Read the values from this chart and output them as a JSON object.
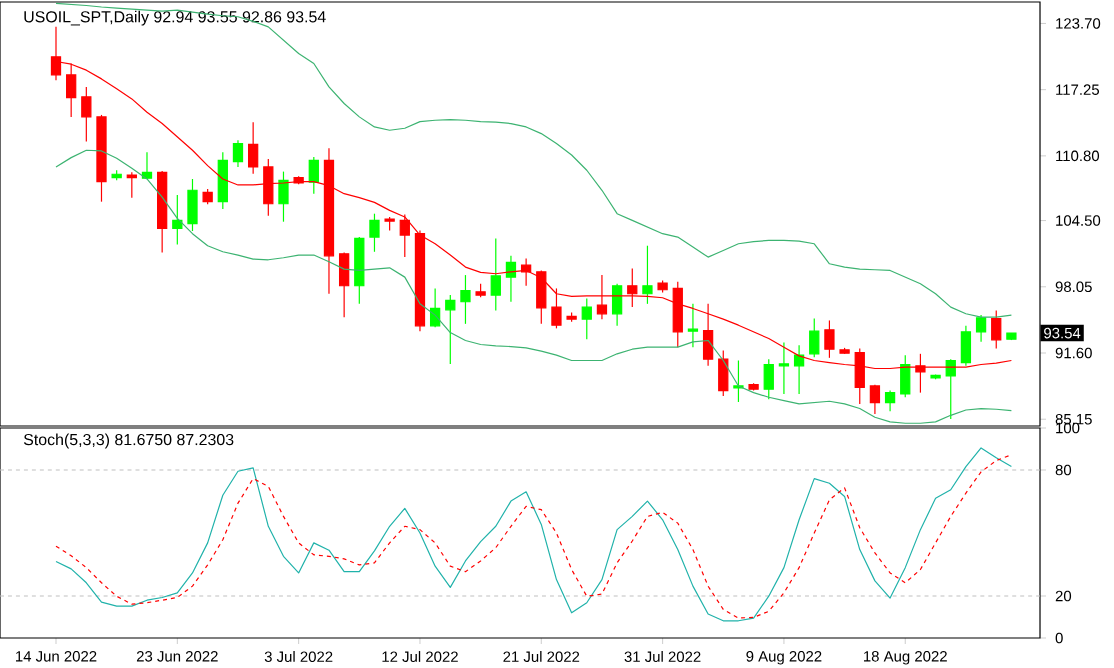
{
  "chart_data": [
    {
      "type": "candlestick",
      "title": "USOIL_SPT,Daily 92.94 93.55 92.86 93.54",
      "categories": [
        null,
        null,
        null,
        null,
        null,
        null,
        null,
        null,
        null,
        null,
        null,
        null,
        null,
        null,
        null,
        null,
        null,
        null,
        null,
        null,
        null,
        null,
        null,
        null,
        null,
        null,
        null,
        null,
        null,
        null,
        null,
        null,
        null,
        null,
        null,
        null,
        null,
        null,
        null,
        null,
        null,
        null,
        null,
        null,
        null,
        null,
        null,
        null,
        null,
        null,
        null,
        null,
        null,
        null,
        null,
        null,
        null,
        null,
        null,
        null,
        null,
        null,
        null,
        null
      ],
      "ohlc": [
        [
          120.45,
          123.37,
          118.17,
          118.69
        ],
        [
          118.69,
          119.8,
          114.6,
          116.48
        ],
        [
          116.55,
          117.52,
          112.19,
          114.6
        ],
        [
          114.6,
          114.79,
          106.34,
          108.29
        ],
        [
          108.68,
          109.4,
          108.42,
          109.01
        ],
        [
          108.94,
          109.2,
          106.73,
          108.68
        ],
        [
          108.62,
          111.15,
          108.55,
          109.2
        ],
        [
          109.2,
          109.33,
          101.4,
          103.74
        ],
        [
          103.74,
          107.0,
          102.18,
          104.52
        ],
        [
          104.2,
          108.55,
          103.48,
          107.45
        ],
        [
          107.25,
          107.58,
          106.08,
          106.34
        ],
        [
          106.34,
          111.15,
          105.62,
          110.37
        ],
        [
          110.24,
          112.32,
          109.72,
          112.0
        ],
        [
          111.93,
          114.08,
          109.07,
          109.72
        ],
        [
          109.72,
          110.5,
          104.97,
          106.14
        ],
        [
          106.14,
          109.27,
          104.39,
          108.42
        ],
        [
          108.68,
          108.81,
          108.03,
          108.16
        ],
        [
          108.23,
          110.7,
          107.12,
          110.37
        ],
        [
          110.37,
          111.54,
          97.37,
          101.07
        ],
        [
          101.27,
          101.4,
          95.09,
          98.15
        ],
        [
          98.15,
          102.89,
          96.39,
          102.76
        ],
        [
          102.89,
          105.17,
          101.46,
          104.52
        ],
        [
          104.65,
          104.85,
          103.54,
          104.45
        ],
        [
          104.52,
          105.1,
          100.94,
          103.09
        ],
        [
          103.22,
          103.54,
          93.73,
          94.25
        ],
        [
          94.25,
          97.89,
          94.12,
          95.94
        ],
        [
          95.81,
          97.24,
          90.54,
          96.72
        ],
        [
          96.59,
          99.19,
          94.44,
          97.69
        ],
        [
          97.56,
          98.34,
          97.04,
          97.24
        ],
        [
          97.24,
          102.76,
          95.74,
          99.12
        ],
        [
          98.99,
          101.07,
          96.59,
          100.42
        ],
        [
          100.16,
          100.81,
          98.15,
          99.51
        ],
        [
          99.51,
          99.64,
          94.44,
          96.0
        ],
        [
          96.07,
          97.89,
          94.0,
          94.31
        ],
        [
          95.16,
          95.55,
          94.64,
          94.9
        ],
        [
          94.9,
          96.91,
          92.95,
          96.07
        ],
        [
          96.26,
          99.19,
          94.9,
          95.42
        ],
        [
          95.42,
          98.34,
          94.25,
          98.15
        ],
        [
          98.15,
          99.84,
          96.07,
          97.37
        ],
        [
          97.37,
          102.05,
          96.39,
          98.15
        ],
        [
          98.41,
          98.67,
          97.5,
          97.76
        ],
        [
          97.89,
          98.54,
          92.17,
          93.66
        ],
        [
          93.73,
          96.39,
          92.17,
          93.92
        ],
        [
          93.79,
          96.39,
          90.35,
          91.0
        ],
        [
          91.0,
          91.84,
          87.42,
          87.94
        ],
        [
          88.2,
          90.87,
          86.83,
          88.39
        ],
        [
          88.52,
          88.65,
          87.94,
          88.07
        ],
        [
          88.07,
          91.0,
          87.09,
          90.48
        ],
        [
          90.35,
          92.62,
          87.61,
          90.54
        ],
        [
          90.35,
          92.36,
          87.61,
          91.39
        ],
        [
          91.52,
          94.96,
          91.19,
          93.73
        ],
        [
          93.86,
          94.77,
          91.13,
          91.97
        ],
        [
          91.91,
          92.1,
          91.52,
          91.58
        ],
        [
          91.65,
          92.04,
          86.64,
          88.26
        ],
        [
          88.39,
          88.52,
          85.66,
          86.77
        ],
        [
          86.77,
          87.94,
          85.92,
          87.74
        ],
        [
          87.61,
          91.39,
          87.29,
          90.48
        ],
        [
          90.35,
          91.52,
          87.74,
          89.76
        ],
        [
          89.17,
          89.5,
          89.04,
          89.43
        ],
        [
          89.37,
          91.0,
          85.18,
          90.87
        ],
        [
          90.67,
          94.25,
          90.35,
          93.66
        ],
        [
          93.66,
          95.29,
          92.69,
          95.03
        ],
        [
          94.96,
          95.74,
          92.04,
          92.88
        ],
        [
          92.94,
          93.55,
          92.86,
          93.54
        ]
      ],
      "colors": [
        "#ff0000",
        "#ff0000",
        "#ff0000",
        "#ff0000",
        "#00ff00",
        "#ff0000",
        "#00ff00",
        "#ff0000",
        "#00ff00",
        "#00ff00",
        "#ff0000",
        "#00ff00",
        "#00ff00",
        "#ff0000",
        "#ff0000",
        "#00ff00",
        "#ff0000",
        "#00ff00",
        "#ff0000",
        "#ff0000",
        "#00ff00",
        "#00ff00",
        "#ff0000",
        "#ff0000",
        "#ff0000",
        "#00ff00",
        "#00ff00",
        "#00ff00",
        "#ff0000",
        "#00ff00",
        "#00ff00",
        "#ff0000",
        "#ff0000",
        "#ff0000",
        "#ff0000",
        "#00ff00",
        "#ff0000",
        "#00ff00",
        "#ff0000",
        "#00ff00",
        "#ff0000",
        "#ff0000",
        "#00ff00",
        "#ff0000",
        "#ff0000",
        "#00ff00",
        "#ff0000",
        "#00ff00",
        "#00ff00",
        "#00ff00",
        "#00ff00",
        "#ff0000",
        "#ff0000",
        "#ff0000",
        "#ff0000",
        "#00ff00",
        "#00ff00",
        "#ff0000",
        "#00ff00",
        "#00ff00",
        "#00ff00",
        "#00ff00",
        "#ff0000",
        "#00ff00"
      ],
      "series": [
        {
          "type": "line",
          "color": "#3cb371",
          "values": [
            125.65,
            125.55,
            125.45,
            125.3,
            125.2,
            125.1,
            125.0,
            124.9,
            125.0,
            124.8,
            124.6,
            124.45,
            124.35,
            123.9,
            123.37,
            122.07,
            120.77,
            119.8,
            117.52,
            115.9,
            114.6,
            113.62,
            113.3,
            113.49,
            114.14,
            114.27,
            114.34,
            114.27,
            114.14,
            114.08,
            113.95,
            113.62,
            112.97,
            112.0,
            110.89,
            109.4,
            107.45,
            105.17,
            104.52,
            103.87,
            103.22,
            102.89,
            101.92,
            100.94,
            101.59,
            102.24,
            102.44,
            102.57,
            102.57,
            102.5,
            102.24,
            100.29,
            99.97,
            99.77,
            99.71,
            99.64,
            98.99,
            98.34,
            97.37,
            96.07,
            95.42,
            95.09,
            95.09,
            95.29
          ]
        },
        {
          "type": "line",
          "color": "#ff0000",
          "values": [
            119.99,
            119.73,
            119.15,
            118.3,
            117.33,
            116.35,
            115.05,
            113.95,
            112.65,
            111.35,
            109.85,
            108.55,
            107.97,
            107.97,
            108.1,
            108.16,
            108.29,
            108.29,
            107.9,
            107.12,
            106.73,
            106.27,
            105.49,
            104.85,
            103.09,
            102.24,
            101.14,
            99.97,
            99.45,
            99.32,
            99.51,
            99.64,
            98.93,
            97.37,
            97.11,
            97.17,
            97.17,
            97.17,
            97.17,
            97.11,
            96.98,
            96.39,
            95.94,
            95.42,
            94.9,
            94.31,
            93.66,
            93.01,
            92.17,
            91.32,
            90.87,
            90.67,
            90.48,
            90.35,
            90.09,
            90.09,
            90.22,
            90.22,
            90.22,
            90.22,
            90.22,
            90.48,
            90.61,
            90.87
          ]
        },
        {
          "type": "line",
          "color": "#3cb371",
          "values": [
            109.72,
            110.63,
            111.35,
            111.28,
            110.57,
            109.59,
            108.55,
            106.79,
            104.71,
            103.22,
            102.05,
            101.46,
            101.14,
            100.75,
            100.68,
            100.88,
            101.14,
            101.14,
            100.49,
            99.77,
            99.64,
            99.77,
            99.9,
            98.99,
            96.39,
            95.29,
            93.59,
            92.82,
            92.43,
            92.3,
            92.23,
            92.1,
            91.78,
            91.39,
            90.87,
            90.87,
            90.87,
            91.52,
            91.97,
            92.17,
            92.17,
            92.17,
            92.69,
            92.82,
            90.87,
            88.39,
            87.74,
            87.29,
            86.96,
            86.64,
            86.77,
            86.9,
            86.64,
            86.19,
            85.34,
            84.89,
            84.76,
            84.76,
            84.89,
            85.53,
            86.05,
            86.19,
            86.12,
            85.99
          ]
        }
      ],
      "ylim": [
        84.49,
        125.79
      ],
      "yticks": [
        {
          "value": 85.15,
          "label": "85.15"
        },
        {
          "value": 91.6,
          "label": "91.60"
        },
        {
          "value": 98.05,
          "label": "98.05"
        },
        {
          "value": 104.5,
          "label": "104.50"
        },
        {
          "value": 110.8,
          "label": "110.80"
        },
        {
          "value": 117.25,
          "label": "117.25"
        },
        {
          "value": 123.7,
          "label": "123.70"
        }
      ],
      "tick_labels": "y",
      "annotations": [
        "93.54"
      ]
    },
    {
      "type": "line",
      "title": "Stoch(5,3,3) 81.6750 87.2303",
      "categories": [
        "14 Jun 2022",
        null,
        null,
        null,
        null,
        null,
        null,
        null,
        "23 Jun 2022",
        null,
        null,
        null,
        null,
        null,
        null,
        null,
        "3 Jul 2022",
        null,
        null,
        null,
        null,
        null,
        null,
        null,
        "12 Jul 2022",
        null,
        null,
        null,
        null,
        null,
        null,
        null,
        "21 Jul 2022",
        null,
        null,
        null,
        null,
        null,
        null,
        null,
        "31 Jul 2022",
        null,
        null,
        null,
        null,
        null,
        null,
        null,
        "9 Aug 2022",
        null,
        null,
        null,
        null,
        null,
        null,
        null,
        "18 Aug 2022",
        null,
        null,
        null,
        null,
        null,
        null,
        null
      ],
      "series": [
        {
          "color": "#20b2aa",
          "line_style": "solid",
          "values": [
            36.4,
            32.9,
            26.3,
            17.1,
            15.2,
            15.2,
            18.0,
            19.3,
            21.5,
            31.0,
            45.3,
            68.0,
            79.4,
            81.0,
            53.2,
            38.9,
            31.0,
            45.3,
            41.8,
            31.6,
            31.6,
            41.5,
            53.2,
            61.7,
            50.0,
            34.2,
            24.1,
            36.7,
            45.9,
            53.2,
            65.2,
            69.6,
            54.1,
            27.8,
            12.0,
            16.8,
            27.8,
            51.6,
            57.9,
            65.2,
            56.3,
            42.1,
            24.7,
            11.4,
            8.2,
            8.2,
            9.5,
            19.9,
            33.5,
            56.3,
            75.9,
            73.7,
            67.4,
            42.1,
            27.2,
            19.0,
            33.5,
            51.6,
            66.5,
            70.6,
            81.6,
            90.5,
            85.8,
            81.675
          ]
        },
        {
          "color": "#ff0000",
          "line_style": "dashed",
          "values": [
            43.7,
            39.2,
            33.5,
            26.3,
            19.9,
            16.1,
            16.8,
            18.0,
            19.3,
            24.7,
            34.8,
            46.8,
            64.2,
            75.9,
            72.2,
            57.9,
            45.3,
            39.6,
            38.9,
            37.7,
            34.8,
            35.8,
            45.3,
            53.2,
            51.6,
            45.3,
            34.2,
            31.6,
            36.7,
            43.0,
            53.2,
            62.7,
            61.1,
            50.0,
            32.6,
            19.9,
            20.9,
            35.8,
            46.2,
            57.9,
            59.8,
            54.7,
            42.1,
            24.7,
            13.6,
            9.5,
            9.8,
            12.7,
            21.5,
            33.5,
            50.0,
            65.8,
            71.5,
            52.5,
            40.5,
            31.0,
            26.3,
            32.6,
            45.3,
            57.9,
            69.0,
            79.1,
            84.5,
            87.2303
          ]
        }
      ],
      "ylim": [
        0,
        100
      ],
      "yticks": [
        0,
        20,
        80,
        100
      ],
      "ref_lines": [
        {
          "axis": "y",
          "value": 20,
          "color": "#c0c0c0",
          "line_style": "dashed"
        },
        {
          "axis": "y",
          "value": 80,
          "color": "#c0c0c0",
          "line_style": "dashed"
        }
      ]
    }
  ]
}
